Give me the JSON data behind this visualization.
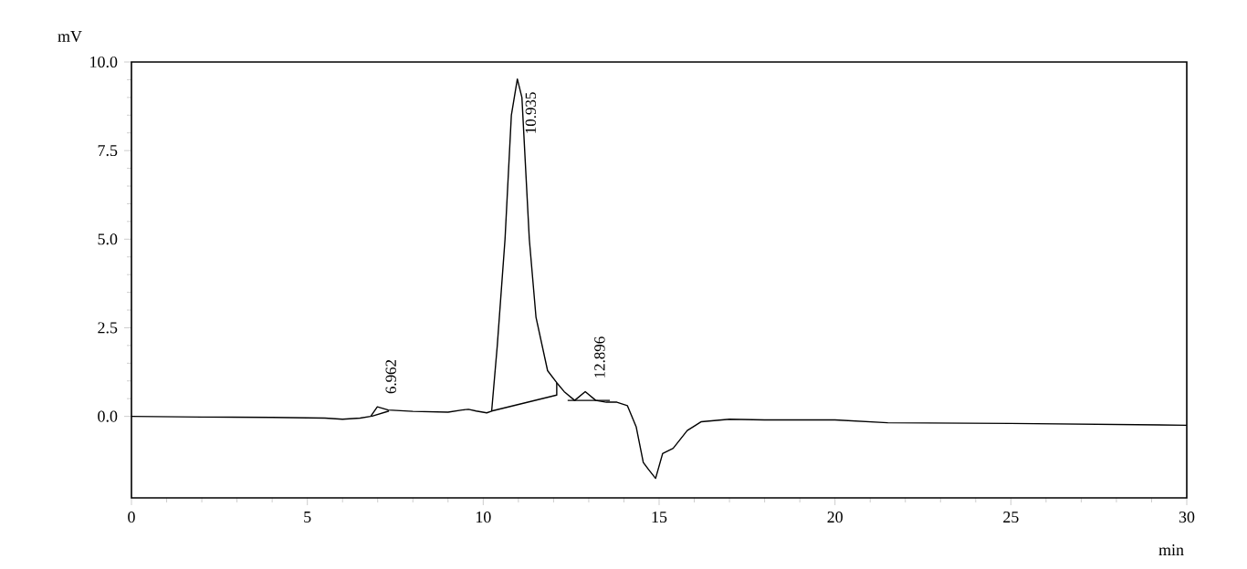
{
  "chart_data": {
    "type": "line",
    "xlabel": "min",
    "ylabel": "mV",
    "xlim": [
      0,
      30
    ],
    "ylim": [
      -2.3,
      10.0
    ],
    "xticks": [
      0,
      5,
      10,
      15,
      20,
      25,
      30
    ],
    "yticks": [
      {
        "value": 0,
        "label": "0.0"
      },
      {
        "value": 2.5,
        "label": "2.5"
      },
      {
        "value": 5,
        "label": "5.0"
      },
      {
        "value": 7.5,
        "label": "7.5"
      },
      {
        "value": 10,
        "label": "10.0"
      }
    ],
    "marker": "none",
    "line_style": "solid",
    "series": [
      {
        "color": "#000000",
        "x": [
          0,
          2,
          4,
          5.5,
          6.0,
          6.5,
          6.8,
          6.99,
          7.3,
          8,
          9,
          9.4,
          9.58,
          9.8,
          10.1,
          10.24,
          10.4,
          10.62,
          10.8,
          10.97,
          11.1,
          11.31,
          11.5,
          11.83,
          12.09,
          12.3,
          12.6,
          12.9,
          13.2,
          13.5,
          13.8,
          14.1,
          14.35,
          14.55,
          14.7,
          14.9,
          15.1,
          15.4,
          15.8,
          16.2,
          17,
          18,
          20,
          21.5,
          25,
          30
        ],
        "values": [
          0,
          -0.02,
          -0.03,
          -0.05,
          -0.08,
          -0.05,
          0.0,
          0.27,
          0.18,
          0.14,
          0.12,
          0.18,
          0.2,
          0.15,
          0.1,
          0.15,
          2.0,
          5.0,
          8.5,
          9.52,
          9.0,
          5.0,
          2.8,
          1.29,
          0.95,
          0.7,
          0.45,
          0.7,
          0.45,
          0.4,
          0.4,
          0.3,
          -0.3,
          -1.3,
          -1.5,
          -1.75,
          -1.05,
          -0.9,
          -0.4,
          -0.15,
          -0.08,
          -0.1,
          -0.1,
          -0.18,
          -0.2,
          -0.25
        ]
      },
      {
        "color": "#000000",
        "x": [
          6.82,
          7.32
        ],
        "values": [
          0,
          0.15
        ]
      },
      {
        "color": "#000000",
        "x": [
          10.24,
          12.09,
          12.09
        ],
        "values": [
          0.15,
          0.6,
          0.95
        ]
      },
      {
        "color": "#000000",
        "x": [
          12.4,
          13.6
        ],
        "values": [
          0.45,
          0.45
        ]
      }
    ],
    "annotations": [
      {
        "text": "6.962",
        "x": 6.962,
        "y": 0.27
      },
      {
        "text": "10.935",
        "x": 10.935,
        "y": 9.52
      },
      {
        "text": "12.896",
        "x": 12.896,
        "y": 0.7
      }
    ]
  }
}
